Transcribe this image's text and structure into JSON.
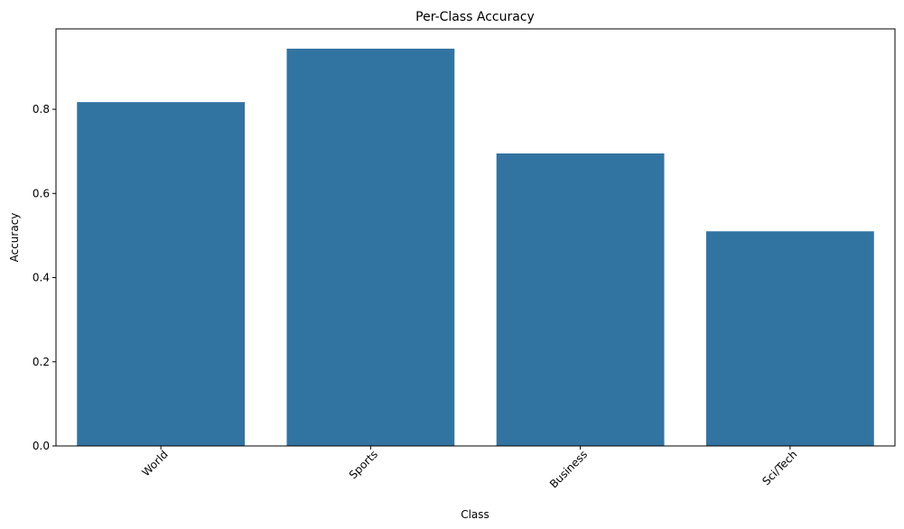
{
  "chart_data": {
    "type": "bar",
    "title": "Per-Class Accuracy",
    "xlabel": "Class",
    "ylabel": "Accuracy",
    "categories": [
      "World",
      "Sports",
      "Business",
      "Sci/Tech"
    ],
    "values": [
      0.817,
      0.944,
      0.695,
      0.51
    ],
    "ylim": [
      0,
      0.991
    ],
    "yticks": [
      0.0,
      0.2,
      0.4,
      0.6,
      0.8
    ],
    "ytick_labels": [
      "0.0",
      "0.2",
      "0.4",
      "0.6",
      "0.8"
    ],
    "xtick_rotation": 45,
    "grid": false,
    "bar_color": "#3274a1"
  }
}
